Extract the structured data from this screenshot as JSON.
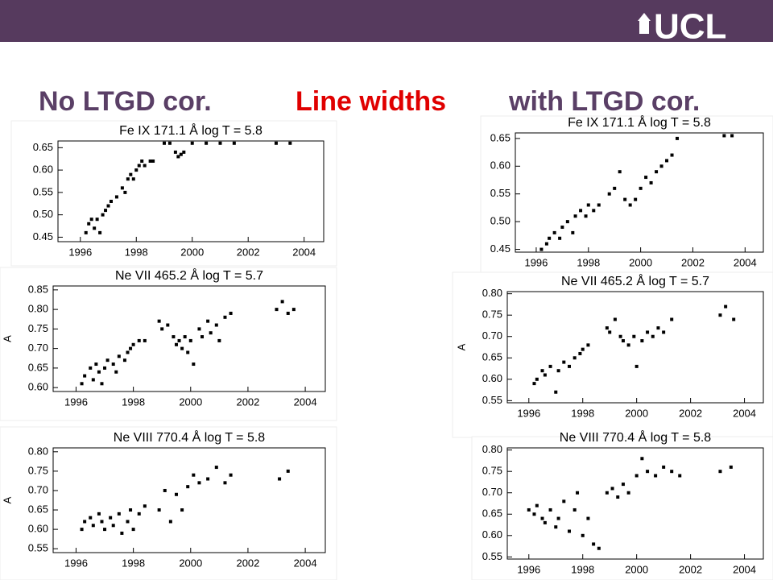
{
  "slide": {
    "logo": "UCL",
    "left_heading": "No LTGD cor.",
    "center_heading": "Line widths",
    "right_heading": "with LTGD cor."
  },
  "chart_data": [
    {
      "type": "scatter",
      "title": "Fe IX 171.1 Å log T = 5.8",
      "color": "#000000",
      "xlim": [
        1995.2,
        2004.7
      ],
      "ylim": [
        0.44,
        0.665
      ],
      "xticks": [
        1996,
        1998,
        2000,
        2002,
        2004
      ],
      "yticks": [
        0.45,
        {
          "value": 0.5,
          "label": "0.50"
        },
        0.55,
        {
          "value": 0.6,
          "label": "0.60"
        },
        0.65
      ],
      "x": [
        1996.2,
        1996.3,
        1996.4,
        1996.5,
        1996.6,
        1996.7,
        1996.8,
        1996.9,
        1997.0,
        1997.1,
        1997.3,
        1997.5,
        1997.6,
        1997.7,
        1997.8,
        1997.9,
        1998.0,
        1998.1,
        1998.2,
        1998.3,
        1998.5,
        1998.6,
        1999.0,
        1999.2,
        1999.4,
        1999.5,
        1999.6,
        1999.7,
        2000.0,
        2000.5,
        2001.0,
        2001.5,
        2003.0,
        2003.5
      ],
      "values": [
        0.46,
        0.48,
        0.49,
        0.47,
        0.49,
        0.46,
        0.5,
        0.51,
        0.52,
        0.53,
        0.54,
        0.56,
        0.55,
        0.58,
        0.59,
        0.58,
        0.6,
        0.61,
        0.62,
        0.61,
        0.62,
        0.62,
        0.66,
        0.66,
        0.64,
        0.63,
        0.635,
        0.64,
        0.66,
        0.66,
        0.66,
        0.66,
        0.66,
        0.66
      ]
    },
    {
      "type": "scatter",
      "title": "Ne VII 465.2 Å log T = 5.7",
      "ylabel": "A",
      "color": "#000000",
      "xlim": [
        1995.2,
        2004.7
      ],
      "ylim": [
        0.59,
        0.86
      ],
      "xticks": [
        1996,
        1998,
        2000,
        2002,
        2004
      ],
      "yticks": [
        {
          "value": 0.6,
          "label": "0.60"
        },
        0.65,
        {
          "value": 0.7,
          "label": "0.70"
        },
        0.75,
        {
          "value": 0.8,
          "label": "0.80"
        },
        0.85
      ],
      "x": [
        1996.2,
        1996.3,
        1996.5,
        1996.6,
        1996.7,
        1996.8,
        1996.9,
        1997.0,
        1997.1,
        1997.3,
        1997.4,
        1997.5,
        1997.7,
        1997.8,
        1997.9,
        1998.0,
        1998.2,
        1998.4,
        1998.9,
        1999.0,
        1999.2,
        1999.4,
        1999.5,
        1999.6,
        1999.7,
        1999.8,
        1999.9,
        2000.0,
        2000.1,
        2000.3,
        2000.4,
        2000.6,
        2000.7,
        2000.9,
        2001.0,
        2001.2,
        2001.4,
        2003.0,
        2003.2,
        2003.4,
        2003.6
      ],
      "values": [
        0.61,
        0.63,
        0.65,
        0.62,
        0.66,
        0.64,
        0.61,
        0.65,
        0.67,
        0.66,
        0.64,
        0.68,
        0.67,
        0.69,
        0.7,
        0.71,
        0.72,
        0.72,
        0.77,
        0.75,
        0.76,
        0.73,
        0.71,
        0.72,
        0.7,
        0.73,
        0.69,
        0.72,
        0.66,
        0.75,
        0.73,
        0.77,
        0.74,
        0.76,
        0.72,
        0.78,
        0.79,
        0.8,
        0.82,
        0.79,
        0.8
      ]
    },
    {
      "type": "scatter",
      "title": "Ne VIII 770.4 Å log T = 5.8",
      "ylabel": "A",
      "color": "#000000",
      "xlim": [
        1995.2,
        2004.7
      ],
      "ylim": [
        0.54,
        0.81
      ],
      "xticks": [
        1996,
        1998,
        2000,
        2002,
        2004
      ],
      "yticks": [
        0.55,
        {
          "value": 0.6,
          "label": "0.60"
        },
        0.65,
        {
          "value": 0.7,
          "label": "0.70"
        },
        0.75,
        {
          "value": 0.8,
          "label": "0.80"
        }
      ],
      "x": [
        1996.2,
        1996.3,
        1996.5,
        1996.6,
        1996.8,
        1996.9,
        1997.0,
        1997.2,
        1997.3,
        1997.5,
        1997.6,
        1997.8,
        1997.9,
        1998.0,
        1998.2,
        1998.4,
        1998.9,
        1999.1,
        1999.3,
        1999.5,
        1999.7,
        1999.9,
        2000.1,
        2000.3,
        2000.6,
        2000.9,
        2001.2,
        2001.4,
        2003.1,
        2003.4
      ],
      "values": [
        0.6,
        0.62,
        0.63,
        0.61,
        0.64,
        0.62,
        0.6,
        0.63,
        0.61,
        0.64,
        0.59,
        0.62,
        0.65,
        0.6,
        0.64,
        0.66,
        0.65,
        0.7,
        0.62,
        0.69,
        0.65,
        0.71,
        0.74,
        0.72,
        0.73,
        0.76,
        0.72,
        0.74,
        0.73,
        0.75
      ]
    },
    {
      "type": "scatter",
      "title": "Fe IX 171.1 Å log T = 5.8",
      "color": "#000000",
      "xlim": [
        1995.2,
        2004.7
      ],
      "ylim": [
        0.445,
        0.66
      ],
      "xticks": [
        1996,
        1998,
        2000,
        2002,
        2004
      ],
      "yticks": [
        0.45,
        {
          "value": 0.5,
          "label": "0.50"
        },
        0.55,
        {
          "value": 0.6,
          "label": "0.60"
        },
        0.65
      ],
      "x": [
        1996.2,
        1996.4,
        1996.5,
        1996.7,
        1996.9,
        1997.0,
        1997.2,
        1997.4,
        1997.5,
        1997.7,
        1997.9,
        1998.0,
        1998.2,
        1998.4,
        1998.8,
        1999.0,
        1999.2,
        1999.4,
        1999.6,
        1999.8,
        2000.0,
        2000.2,
        2000.4,
        2000.6,
        2000.8,
        2001.0,
        2001.2,
        2001.4,
        2003.2,
        2003.5
      ],
      "values": [
        0.45,
        0.46,
        0.47,
        0.48,
        0.47,
        0.49,
        0.5,
        0.48,
        0.51,
        0.52,
        0.51,
        0.53,
        0.52,
        0.53,
        0.55,
        0.56,
        0.59,
        0.54,
        0.53,
        0.54,
        0.56,
        0.58,
        0.57,
        0.59,
        0.6,
        0.61,
        0.62,
        0.65,
        0.655,
        0.655
      ]
    },
    {
      "type": "scatter",
      "title": "Ne VII 465.2 Å log T = 5.7",
      "ylabel": "A",
      "color": "#000000",
      "xlim": [
        1995.2,
        2004.7
      ],
      "ylim": [
        0.545,
        0.805
      ],
      "xticks": [
        1996,
        1998,
        2000,
        2002,
        2004
      ],
      "yticks": [
        0.55,
        {
          "value": 0.6,
          "label": "0.60"
        },
        0.65,
        {
          "value": 0.7,
          "label": "0.70"
        },
        0.75,
        {
          "value": 0.8,
          "label": "0.80"
        }
      ],
      "x": [
        1996.2,
        1996.3,
        1996.5,
        1996.6,
        1996.8,
        1997.0,
        1997.1,
        1997.3,
        1997.5,
        1997.7,
        1997.9,
        1998.0,
        1998.2,
        1998.9,
        1999.0,
        1999.2,
        1999.4,
        1999.5,
        1999.7,
        1999.9,
        2000.0,
        2000.2,
        2000.4,
        2000.6,
        2000.8,
        2001.0,
        2001.3,
        2003.1,
        2003.3,
        2003.6
      ],
      "values": [
        0.59,
        0.6,
        0.62,
        0.61,
        0.63,
        0.57,
        0.62,
        0.64,
        0.63,
        0.65,
        0.66,
        0.67,
        0.68,
        0.72,
        0.71,
        0.74,
        0.7,
        0.69,
        0.68,
        0.7,
        0.63,
        0.69,
        0.71,
        0.7,
        0.72,
        0.71,
        0.74,
        0.75,
        0.77,
        0.74
      ]
    },
    {
      "type": "scatter",
      "title": "Ne VIII 770.4 Å log T = 5.8",
      "color": "#000000",
      "xlim": [
        1995.2,
        2004.7
      ],
      "ylim": [
        0.545,
        0.805
      ],
      "xticks": [
        1996,
        1998,
        2000,
        2002,
        2004
      ],
      "yticks": [
        0.55,
        {
          "value": 0.6,
          "label": "0.60"
        },
        0.65,
        {
          "value": 0.7,
          "label": "0.70"
        },
        0.75,
        {
          "value": 0.8,
          "label": "0.80"
        }
      ],
      "x": [
        1996.0,
        1996.2,
        1996.3,
        1996.5,
        1996.6,
        1996.8,
        1997.0,
        1997.1,
        1997.3,
        1997.5,
        1997.7,
        1997.8,
        1998.0,
        1998.2,
        1998.4,
        1998.6,
        1998.9,
        1999.1,
        1999.3,
        1999.5,
        1999.7,
        2000.0,
        2000.2,
        2000.4,
        2000.7,
        2001.0,
        2001.3,
        2001.6,
        2003.1,
        2003.5
      ],
      "values": [
        0.66,
        0.65,
        0.67,
        0.64,
        0.63,
        0.66,
        0.62,
        0.64,
        0.68,
        0.61,
        0.66,
        0.7,
        0.6,
        0.64,
        0.58,
        0.57,
        0.7,
        0.71,
        0.69,
        0.72,
        0.7,
        0.74,
        0.78,
        0.75,
        0.74,
        0.76,
        0.75,
        0.74,
        0.75,
        0.76
      ]
    }
  ]
}
